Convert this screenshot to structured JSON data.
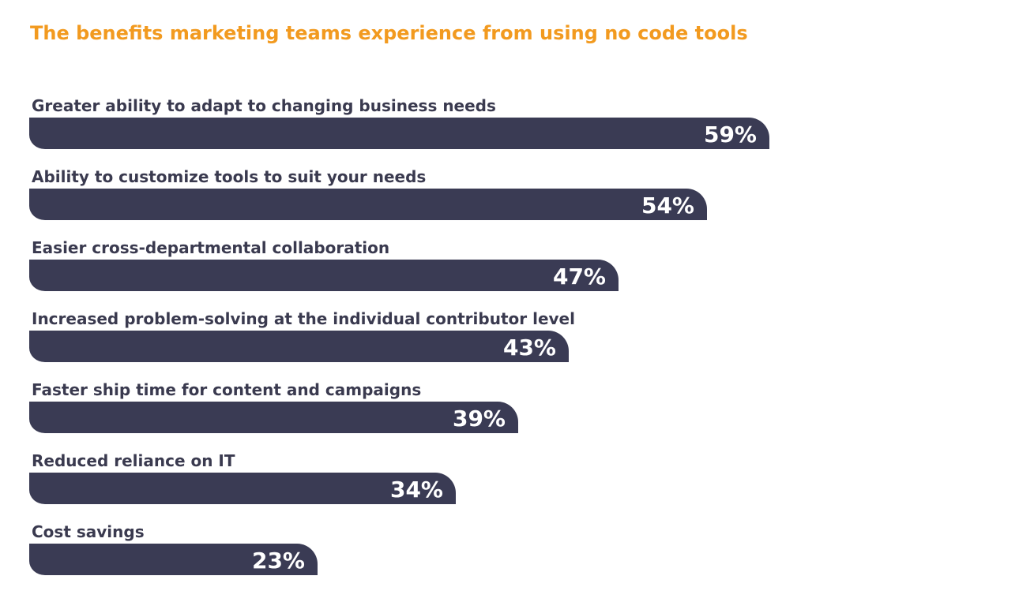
{
  "chart_data": {
    "type": "bar",
    "orientation": "horizontal",
    "title": "The benefits marketing teams experience from using no code tools",
    "categories": [
      "Greater ability to adapt to changing business needs",
      "Ability to customize tools to suit your needs",
      "Easier cross-departmental collaboration",
      "Increased problem-solving at the individual contributor level",
      "Faster ship time for content and campaigns",
      "Reduced reliance on IT",
      "Cost savings"
    ],
    "values": [
      59,
      54,
      47,
      43,
      39,
      34,
      23
    ],
    "value_labels": [
      "59%",
      "54%",
      "47%",
      "43%",
      "39%",
      "34%",
      "23%"
    ],
    "unit": "%",
    "xlim": [
      0,
      100
    ],
    "grid": false,
    "legend": "none",
    "colors": {
      "title": "#f29a1f",
      "bar": "#3a3b54",
      "label": "#3a3a4f",
      "value_text": "#ffffff"
    }
  }
}
